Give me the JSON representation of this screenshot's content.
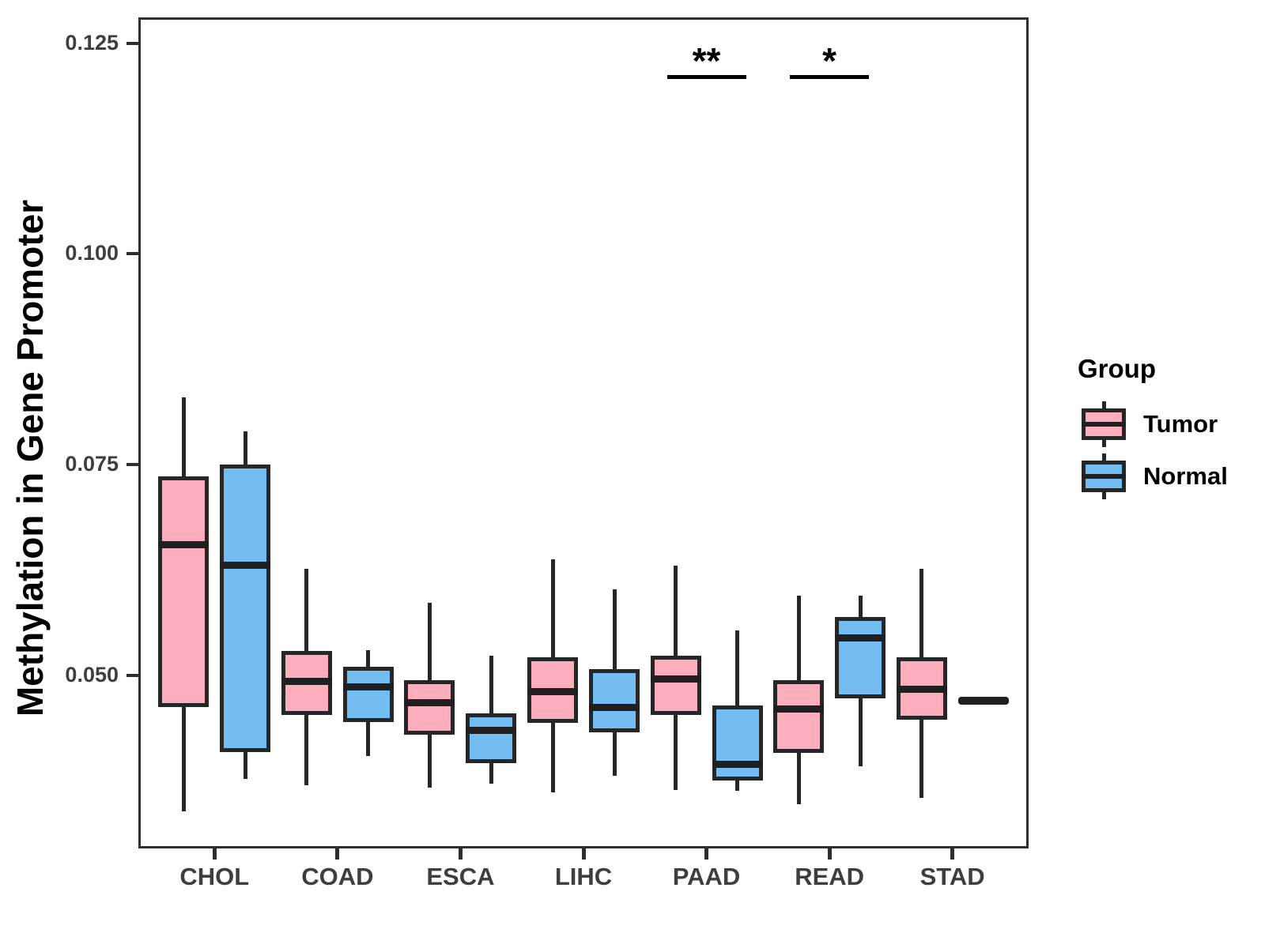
{
  "chart_data": {
    "type": "box",
    "title": "",
    "xlabel": "",
    "ylabel": "Methylation in Gene Promoter",
    "categories": [
      "CHOL",
      "COAD",
      "ESCA",
      "LIHC",
      "PAAD",
      "READ",
      "STAD"
    ],
    "groups": [
      "Tumor",
      "Normal"
    ],
    "colors": {
      "Tumor": "#FCAEBE",
      "Normal": "#74BDF2",
      "stroke": "#262626",
      "axis_text": "#3E3E3E"
    },
    "axis": {
      "ylim": [
        0.0297,
        0.1278
      ],
      "y_tick_values": [
        0.125,
        0.1,
        0.075,
        0.05
      ],
      "y_tick_labels": [
        "0.125",
        "0.100",
        "0.075",
        "0.050"
      ],
      "grid": "off",
      "legend_position": "right"
    },
    "series": [
      {
        "name": "Tumor",
        "boxes": [
          {
            "cat": "CHOL",
            "low": 0.0338,
            "q1": 0.0462,
            "median": 0.0655,
            "q3": 0.0736,
            "high": 0.083
          },
          {
            "cat": "COAD",
            "low": 0.0369,
            "q1": 0.0453,
            "median": 0.0493,
            "q3": 0.0529,
            "high": 0.0626
          },
          {
            "cat": "ESCA",
            "low": 0.0366,
            "q1": 0.0429,
            "median": 0.0467,
            "q3": 0.0494,
            "high": 0.0586
          },
          {
            "cat": "LIHC",
            "low": 0.0361,
            "q1": 0.0443,
            "median": 0.048,
            "q3": 0.0521,
            "high": 0.0637
          },
          {
            "cat": "PAAD",
            "low": 0.0364,
            "q1": 0.0453,
            "median": 0.0495,
            "q3": 0.0523,
            "high": 0.063
          },
          {
            "cat": "READ",
            "low": 0.0347,
            "q1": 0.0408,
            "median": 0.046,
            "q3": 0.0494,
            "high": 0.0594
          },
          {
            "cat": "STAD",
            "low": 0.0354,
            "q1": 0.0447,
            "median": 0.0483,
            "q3": 0.0521,
            "high": 0.0626
          }
        ]
      },
      {
        "name": "Normal",
        "boxes": [
          {
            "cat": "CHOL",
            "low": 0.0377,
            "q1": 0.0409,
            "median": 0.063,
            "q3": 0.075,
            "high": 0.0789
          },
          {
            "cat": "COAD",
            "low": 0.0404,
            "q1": 0.0444,
            "median": 0.0486,
            "q3": 0.051,
            "high": 0.053
          },
          {
            "cat": "ESCA",
            "low": 0.0371,
            "q1": 0.0395,
            "median": 0.0434,
            "q3": 0.0455,
            "high": 0.0523
          },
          {
            "cat": "LIHC",
            "low": 0.038,
            "q1": 0.0432,
            "median": 0.0462,
            "q3": 0.0507,
            "high": 0.0602
          },
          {
            "cat": "PAAD",
            "low": 0.0363,
            "q1": 0.0375,
            "median": 0.0394,
            "q3": 0.0464,
            "high": 0.0553
          },
          {
            "cat": "READ",
            "low": 0.0392,
            "q1": 0.0472,
            "median": 0.0544,
            "q3": 0.0569,
            "high": 0.0594
          },
          {
            "cat": "STAD",
            "low": 0.047,
            "q1": 0.047,
            "median": 0.047,
            "q3": 0.047,
            "high": 0.047
          }
        ]
      }
    ],
    "annotations": [
      {
        "label": "**",
        "category": "PAAD",
        "y": 0.1212
      },
      {
        "label": "*",
        "category": "READ",
        "y": 0.1212
      }
    ],
    "legend": {
      "title": "Group",
      "entries": [
        "Tumor",
        "Normal"
      ]
    }
  }
}
